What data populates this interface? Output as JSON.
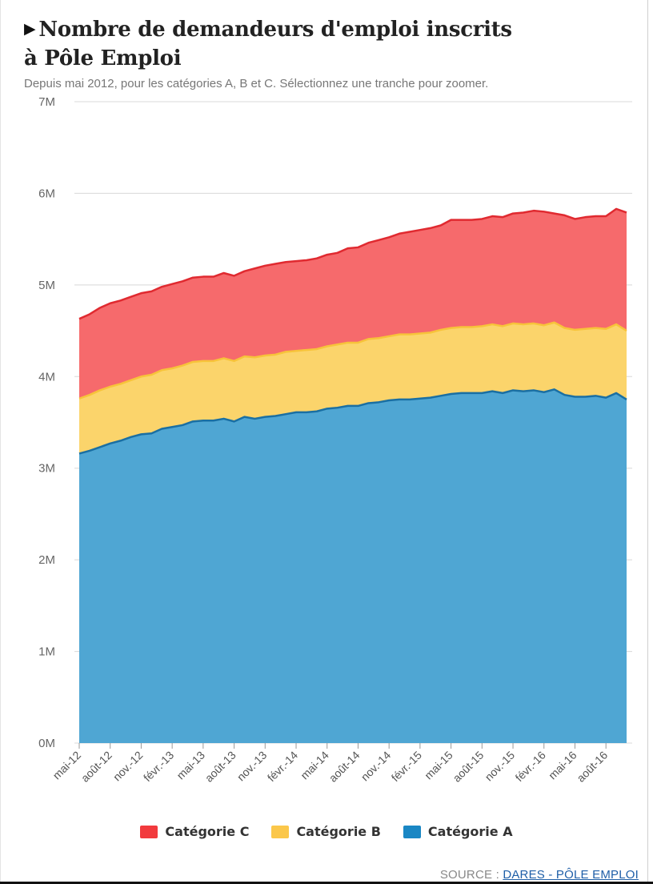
{
  "header": {
    "title_line1": "Nombre de demandeurs d'emploi inscrits",
    "title_line2": "à Pôle Emploi",
    "subtitle": "Depuis mai 2012, pour les catégories A, B et C. Sélectionnez une tranche pour zoomer."
  },
  "legend": {
    "items": [
      {
        "label": "Catégorie C",
        "color": "#f23a3d"
      },
      {
        "label": "Catégorie B",
        "color": "#fbc74a"
      },
      {
        "label": "Catégorie A",
        "color": "#1a87c4"
      }
    ]
  },
  "source": {
    "prefix": "SOURCE : ",
    "link": "DARES - PÔLE EMPLOI"
  },
  "colors": {
    "catA_fill": "#4fa6d3",
    "catA_line": "#1a6fa3",
    "catB_fill": "#fbd46b",
    "catB_line": "#f7c33a",
    "catC_fill": "#f66a6c",
    "catC_line": "#e02a30",
    "grid": "#d8d8d8"
  },
  "chart_data": {
    "type": "area",
    "stacked": true,
    "title": "Nombre de demandeurs d'emploi inscrits à Pôle Emploi",
    "xlabel": "",
    "ylabel": "",
    "ylim": [
      0,
      7
    ],
    "yunit": "M",
    "yticks": [
      "0M",
      "1M",
      "2M",
      "3M",
      "4M",
      "5M",
      "6M",
      "7M"
    ],
    "x_tick_labels": [
      "mai-12",
      "août-12",
      "nov.-12",
      "févr.-13",
      "mai-13",
      "août-13",
      "nov.-13",
      "févr.-14",
      "mai-14",
      "août-14",
      "nov.-14",
      "févr.-15",
      "mai-15",
      "août-15",
      "nov.-15",
      "févr.-16",
      "mai-16",
      "août-16"
    ],
    "series": [
      {
        "name": "Catégorie A",
        "values": [
          3.16,
          3.19,
          3.23,
          3.27,
          3.3,
          3.34,
          3.37,
          3.38,
          3.43,
          3.45,
          3.47,
          3.51,
          3.52,
          3.52,
          3.54,
          3.51,
          3.56,
          3.54,
          3.56,
          3.57,
          3.59,
          3.61,
          3.61,
          3.62,
          3.65,
          3.66,
          3.68,
          3.68,
          3.71,
          3.72,
          3.74,
          3.75,
          3.75,
          3.76,
          3.77,
          3.79,
          3.81,
          3.82,
          3.82,
          3.82,
          3.84,
          3.82,
          3.85,
          3.84,
          3.85,
          3.83,
          3.86,
          3.8,
          3.78,
          3.78,
          3.79,
          3.77,
          3.82,
          3.75
        ]
      },
      {
        "name": "Catégorie B",
        "values": [
          0.6,
          0.61,
          0.62,
          0.62,
          0.62,
          0.62,
          0.63,
          0.64,
          0.64,
          0.64,
          0.65,
          0.65,
          0.65,
          0.65,
          0.66,
          0.66,
          0.66,
          0.67,
          0.67,
          0.67,
          0.68,
          0.67,
          0.68,
          0.68,
          0.68,
          0.69,
          0.69,
          0.69,
          0.7,
          0.7,
          0.7,
          0.71,
          0.71,
          0.71,
          0.71,
          0.72,
          0.72,
          0.72,
          0.72,
          0.73,
          0.73,
          0.73,
          0.73,
          0.73,
          0.73,
          0.73,
          0.73,
          0.73,
          0.73,
          0.74,
          0.74,
          0.75,
          0.75,
          0.75
        ]
      },
      {
        "name": "Catégorie C",
        "values": [
          0.87,
          0.88,
          0.9,
          0.91,
          0.91,
          0.91,
          0.91,
          0.91,
          0.91,
          0.92,
          0.92,
          0.92,
          0.92,
          0.92,
          0.93,
          0.93,
          0.93,
          0.97,
          0.98,
          0.99,
          0.98,
          0.98,
          0.98,
          0.99,
          1.0,
          1.0,
          1.03,
          1.04,
          1.05,
          1.07,
          1.08,
          1.1,
          1.12,
          1.13,
          1.14,
          1.14,
          1.18,
          1.17,
          1.17,
          1.17,
          1.18,
          1.19,
          1.2,
          1.22,
          1.23,
          1.24,
          1.19,
          1.23,
          1.21,
          1.22,
          1.22,
          1.23,
          1.26,
          1.29
        ]
      }
    ]
  }
}
